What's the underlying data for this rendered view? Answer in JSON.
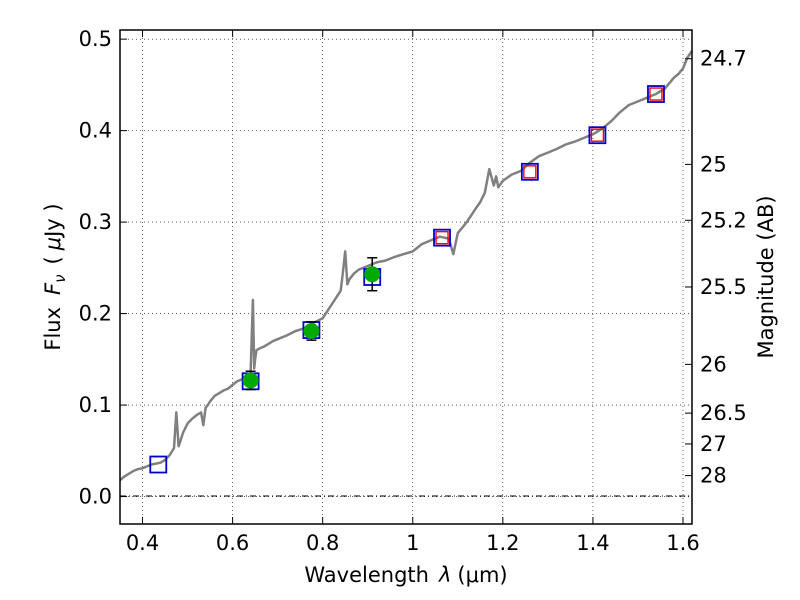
{
  "chart_data": {
    "type": "scatter",
    "title": "",
    "xlabel": {
      "main": "Wavelength",
      "symbol": "λ",
      "unit": "(μm)"
    },
    "ylabel": {
      "main": "Flux",
      "symbol": "F",
      "subscript": "ν",
      "unit_open": "(",
      "unit_mu": "μ",
      "unit_rest": "Jy )"
    },
    "y2label": "Magnitude (AB)",
    "xlim": [
      0.35,
      1.62
    ],
    "ylim": [
      -0.03,
      0.51
    ],
    "grid": true,
    "x_ticks": [
      {
        "value": 0.4,
        "label": "0.4"
      },
      {
        "value": 0.6,
        "label": "0.6"
      },
      {
        "value": 0.8,
        "label": "0.8"
      },
      {
        "value": 1.0,
        "label": "1"
      },
      {
        "value": 1.2,
        "label": "1.2"
      },
      {
        "value": 1.4,
        "label": "1.4"
      },
      {
        "value": 1.6,
        "label": "1.6"
      }
    ],
    "y_ticks": [
      {
        "value": 0.0,
        "label": "0.0"
      },
      {
        "value": 0.1,
        "label": "0.1"
      },
      {
        "value": 0.2,
        "label": "0.2"
      },
      {
        "value": 0.3,
        "label": "0.3"
      },
      {
        "value": 0.4,
        "label": "0.4"
      },
      {
        "value": 0.5,
        "label": "0.5"
      }
    ],
    "y2_ticks": [
      {
        "flux": 0.4786,
        "label": "24.7"
      },
      {
        "flux": 0.3631,
        "label": "25"
      },
      {
        "flux": 0.302,
        "label": "25.2"
      },
      {
        "flux": 0.2291,
        "label": "25.5"
      },
      {
        "flux": 0.1445,
        "label": "26"
      },
      {
        "flux": 0.0912,
        "label": "26.5"
      },
      {
        "flux": 0.0575,
        "label": "27"
      },
      {
        "flux": 0.0229,
        "label": "28"
      }
    ],
    "series": [
      {
        "role": "model spectrum",
        "style": "line",
        "color": "#808080",
        "x": [
          0.35,
          0.36,
          0.37,
          0.38,
          0.39,
          0.4,
          0.41,
          0.42,
          0.43,
          0.44,
          0.45,
          0.46,
          0.47,
          0.475,
          0.48,
          0.485,
          0.49,
          0.5,
          0.51,
          0.52,
          0.53,
          0.535,
          0.54,
          0.545,
          0.55,
          0.56,
          0.57,
          0.58,
          0.59,
          0.6,
          0.61,
          0.62,
          0.63,
          0.64,
          0.645,
          0.648,
          0.65,
          0.653,
          0.66,
          0.67,
          0.68,
          0.69,
          0.7,
          0.72,
          0.74,
          0.76,
          0.78,
          0.8,
          0.82,
          0.84,
          0.845,
          0.85,
          0.855,
          0.86,
          0.87,
          0.88,
          0.9,
          0.92,
          0.94,
          0.96,
          0.98,
          1.0,
          1.02,
          1.04,
          1.06,
          1.08,
          1.09,
          1.1,
          1.12,
          1.14,
          1.15,
          1.16,
          1.17,
          1.18,
          1.185,
          1.19,
          1.2,
          1.22,
          1.24,
          1.26,
          1.28,
          1.3,
          1.32,
          1.34,
          1.36,
          1.38,
          1.4,
          1.42,
          1.44,
          1.46,
          1.48,
          1.5,
          1.52,
          1.54,
          1.56,
          1.58,
          1.59,
          1.6,
          1.61,
          1.62
        ],
        "y": [
          0.018,
          0.022,
          0.025,
          0.028,
          0.03,
          0.031,
          0.033,
          0.035,
          0.036,
          0.037,
          0.04,
          0.045,
          0.053,
          0.092,
          0.055,
          0.062,
          0.07,
          0.08,
          0.085,
          0.089,
          0.092,
          0.078,
          0.097,
          0.1,
          0.104,
          0.11,
          0.113,
          0.116,
          0.118,
          0.122,
          0.126,
          0.128,
          0.132,
          0.135,
          0.215,
          0.14,
          0.15,
          0.16,
          0.162,
          0.164,
          0.167,
          0.17,
          0.172,
          0.176,
          0.181,
          0.184,
          0.19,
          0.195,
          0.21,
          0.225,
          0.245,
          0.268,
          0.232,
          0.238,
          0.244,
          0.248,
          0.252,
          0.256,
          0.258,
          0.262,
          0.265,
          0.268,
          0.276,
          0.28,
          0.284,
          0.282,
          0.265,
          0.288,
          0.3,
          0.315,
          0.322,
          0.332,
          0.358,
          0.34,
          0.35,
          0.338,
          0.345,
          0.352,
          0.356,
          0.365,
          0.372,
          0.376,
          0.38,
          0.385,
          0.388,
          0.392,
          0.396,
          0.402,
          0.41,
          0.42,
          0.428,
          0.432,
          0.436,
          0.44,
          0.446,
          0.458,
          0.462,
          0.468,
          0.48,
          0.487
        ]
      },
      {
        "role": "model photometry",
        "style": "square",
        "color": "#0000cc",
        "x": [
          0.435,
          0.64,
          0.775,
          0.91,
          1.065,
          1.26,
          1.41,
          1.54
        ],
        "y": [
          0.035,
          0.126,
          0.182,
          0.24,
          0.283,
          0.355,
          0.395,
          0.44
        ]
      },
      {
        "role": "model photometry",
        "style": "small-square",
        "color": "#ff0000",
        "x": [
          1.065,
          1.26,
          1.41,
          1.54
        ],
        "y": [
          0.283,
          0.355,
          0.395,
          0.44
        ]
      },
      {
        "role": "observed photometry",
        "style": "circle-errorbar",
        "color": "#00aa00",
        "x": [
          0.64,
          0.775,
          0.91
        ],
        "y": [
          0.127,
          0.181,
          0.243
        ],
        "yerr": [
          0.01,
          0.01,
          0.018
        ]
      }
    ]
  }
}
